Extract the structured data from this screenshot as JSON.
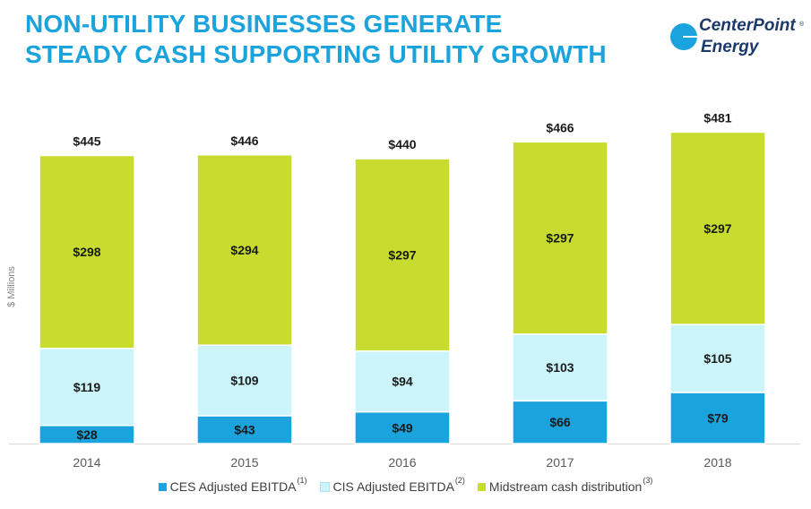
{
  "header": {
    "title_line1": "NON-UTILITY BUSINESSES GENERATE",
    "title_line2": "STEADY CASH SUPPORTING UTILITY GROWTH"
  },
  "logo": {
    "line1": "CenterPoint",
    "line2": "Energy",
    "reg": "®"
  },
  "colors": {
    "title": "#1aa3dc",
    "ces": "#1aa3dc",
    "cis": "#ccf5fb",
    "midstream": "#c7dc2f"
  },
  "chart_data": {
    "type": "bar",
    "stacked": true,
    "ylabel": "$ Millions",
    "categories": [
      "2014",
      "2015",
      "2016",
      "2017",
      "2018"
    ],
    "series": [
      {
        "name": "CES Adjusted EBITDA",
        "note": "(1)",
        "values": [
          28,
          43,
          49,
          66,
          79
        ],
        "labels": [
          "$28",
          "$43",
          "$49",
          "$66",
          "$79"
        ]
      },
      {
        "name": "CIS Adjusted EBITDA",
        "note": "(2)",
        "values": [
          119,
          109,
          94,
          103,
          105
        ],
        "labels": [
          "$119",
          "$109",
          "$94",
          "$103",
          "$105"
        ]
      },
      {
        "name": "Midstream cash distribution",
        "note": "(3)",
        "values": [
          298,
          294,
          297,
          297,
          297
        ],
        "labels": [
          "$298",
          "$294",
          "$297",
          "$297",
          "$297"
        ]
      }
    ],
    "totals": [
      445,
      446,
      440,
      466,
      481
    ],
    "total_labels": [
      "$445",
      "$446",
      "$440",
      "$466",
      "$481"
    ],
    "ylim": [
      0,
      500
    ],
    "grid": false,
    "legend": "bottom"
  }
}
